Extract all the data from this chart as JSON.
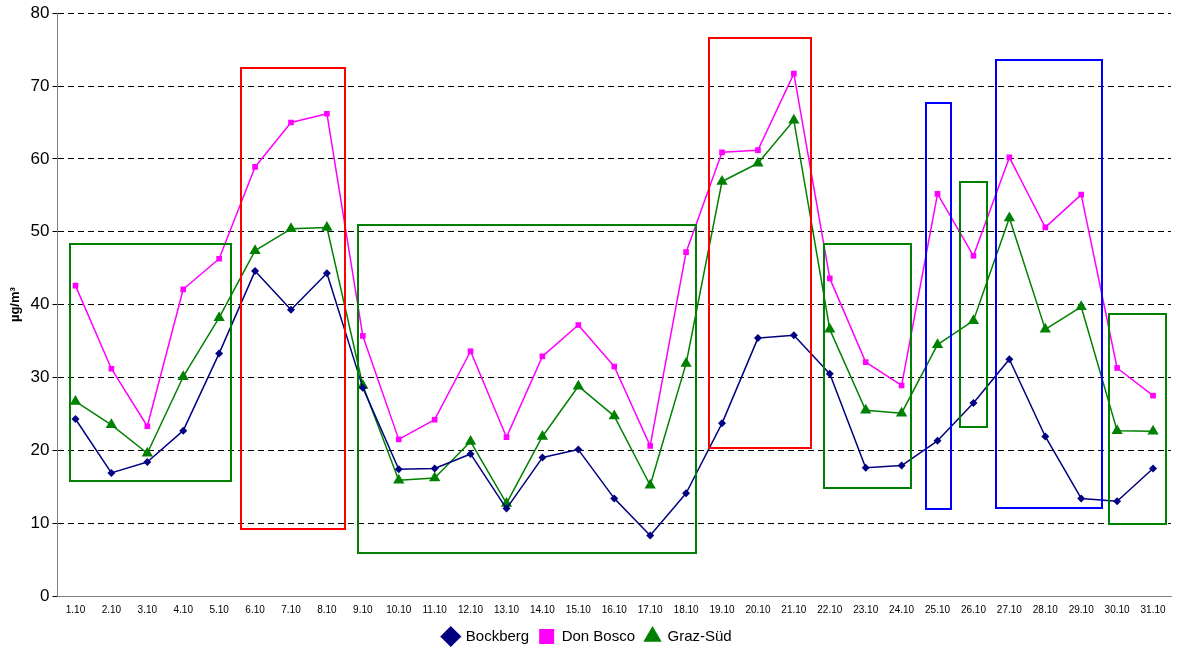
{
  "chart_data": {
    "type": "line",
    "ylabel": "µg/m³",
    "categories": [
      "1.10",
      "2.10",
      "3.10",
      "4.10",
      "5.10",
      "6.10",
      "7.10",
      "8.10",
      "9.10",
      "10.10",
      "11.10",
      "12.10",
      "13.10",
      "14.10",
      "15.10",
      "16.10",
      "17.10",
      "18.10",
      "19.10",
      "20.10",
      "21.10",
      "22.10",
      "23.10",
      "24.10",
      "25.10",
      "26.10",
      "27.10",
      "28.10",
      "29.10",
      "30.10",
      "31.10"
    ],
    "series": [
      {
        "name": "Bockberg",
        "color": "#000080",
        "marker": "diamond",
        "values": [
          24.3,
          16.9,
          18.4,
          22.7,
          33.3,
          44.6,
          39.3,
          44.3,
          28.6,
          17.4,
          17.5,
          19.5,
          12.0,
          19.0,
          20.1,
          13.4,
          8.3,
          14.1,
          23.7,
          35.4,
          35.8,
          30.5,
          17.6,
          17.9,
          21.3,
          26.5,
          32.5,
          21.9,
          13.4,
          13.0,
          17.5
        ]
      },
      {
        "name": "Don Bosco",
        "color": "#ff00ff",
        "marker": "square",
        "values": [
          42.6,
          31.2,
          23.3,
          42.1,
          46.3,
          58.9,
          65.0,
          66.2,
          35.7,
          21.5,
          24.2,
          33.6,
          21.8,
          32.9,
          37.2,
          31.5,
          20.6,
          47.2,
          60.9,
          61.2,
          71.7,
          43.6,
          32.1,
          28.9,
          55.2,
          46.7,
          60.2,
          50.6,
          55.1,
          31.3,
          27.5
        ]
      },
      {
        "name": "Graz-Süd",
        "color": "#008000",
        "marker": "triangle",
        "values": [
          26.7,
          23.5,
          19.6,
          30.1,
          38.2,
          47.4,
          50.4,
          50.6,
          28.9,
          15.9,
          16.2,
          21.2,
          12.7,
          21.9,
          28.8,
          24.7,
          15.2,
          31.9,
          56.9,
          59.4,
          65.3,
          36.6,
          25.5,
          25.1,
          34.5,
          37.8,
          51.9,
          36.6,
          39.7,
          22.7,
          22.6
        ]
      }
    ],
    "ylim": [
      0,
      80
    ],
    "yticks": [
      0,
      10,
      20,
      30,
      40,
      50,
      60,
      70,
      80
    ],
    "grid": "y",
    "legend": "bottom"
  }
}
